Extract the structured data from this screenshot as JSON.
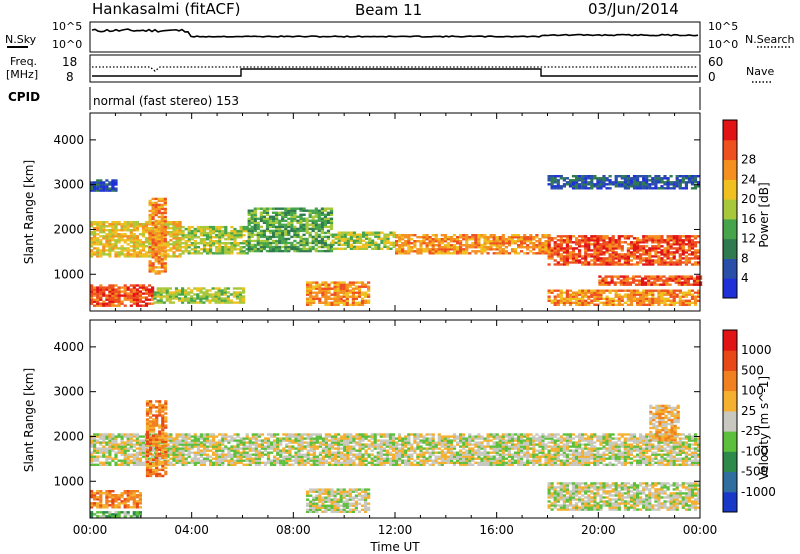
{
  "header": {
    "station": "Hankasalmi (fitACF)",
    "beam": "Beam 11",
    "date": "03/Jun/2014"
  },
  "noise_panel": {
    "left_label": "N.Sky",
    "left_ticks": [
      "10^5",
      "10^0"
    ],
    "right_label": "N.Search",
    "right_ticks": [
      "10^5",
      "10^0"
    ]
  },
  "freq_panel": {
    "left_label_line1": "Freq.",
    "left_label_line2": "[MHz]",
    "left_ticks": [
      "18",
      "8"
    ],
    "right_label": "Nave",
    "right_ticks": [
      "60",
      "0"
    ]
  },
  "cpid_panel": {
    "label": "CPID",
    "text": "normal (fast stereo) 153"
  },
  "chart_data": [
    {
      "type": "heatmap",
      "name": "power",
      "ylabel": "Slant Range [km]",
      "ylim": [
        180,
        4600
      ],
      "yticks": [
        "1000",
        "2000",
        "3000",
        "4000"
      ],
      "xlim": [
        0,
        24
      ],
      "colorbar_label": "Power [dB]",
      "colorbar_ticks": [
        "4",
        "8",
        "12",
        "16",
        "20",
        "24",
        "28"
      ],
      "colorbar_colors": [
        "#2030d8",
        "#2a4fa8",
        "#2f7a4e",
        "#46a54a",
        "#a8c83c",
        "#f0c020",
        "#f59020",
        "#ef5020",
        "#e01414"
      ],
      "bands": [
        {
          "t0": 0.0,
          "t1": 3.6,
          "r0": 1380,
          "r1": 2150,
          "level": 5
        },
        {
          "t0": 3.6,
          "t1": 6.2,
          "r0": 1450,
          "r1": 2050,
          "level": 4
        },
        {
          "t0": 6.2,
          "t1": 9.5,
          "r0": 1500,
          "r1": 2450,
          "level": 3
        },
        {
          "t0": 9.5,
          "t1": 12.0,
          "r0": 1550,
          "r1": 1950,
          "level": 4
        },
        {
          "t0": 12.0,
          "t1": 18.0,
          "r0": 1450,
          "r1": 1900,
          "level": 6
        },
        {
          "t0": 18.0,
          "t1": 24.0,
          "r0": 1200,
          "r1": 1850,
          "level": 7
        },
        {
          "t0": 0.0,
          "t1": 2.5,
          "r0": 280,
          "r1": 750,
          "level": 7
        },
        {
          "t0": 2.5,
          "t1": 6.0,
          "r0": 350,
          "r1": 700,
          "level": 4
        },
        {
          "t0": 8.5,
          "t1": 11.0,
          "r0": 300,
          "r1": 800,
          "level": 6
        },
        {
          "t0": 18.0,
          "t1": 24.0,
          "r0": 300,
          "r1": 650,
          "level": 6
        },
        {
          "t0": 20.0,
          "t1": 24.0,
          "r0": 750,
          "r1": 950,
          "level": 7
        },
        {
          "t0": 2.3,
          "t1": 3.0,
          "r0": 1000,
          "r1": 2700,
          "level": 6
        },
        {
          "t0": 0.0,
          "t1": 1.0,
          "r0": 2850,
          "r1": 3100,
          "level": 1
        },
        {
          "t0": 18.0,
          "t1": 24.0,
          "r0": 2900,
          "r1": 3200,
          "level": 1
        }
      ]
    },
    {
      "type": "heatmap",
      "name": "velocity",
      "ylabel": "Slant Range [km]",
      "ylim": [
        180,
        4600
      ],
      "yticks": [
        "1000",
        "2000",
        "3000",
        "4000"
      ],
      "xlabel": "Time UT",
      "xlim": [
        0,
        24
      ],
      "xticks": [
        "00:00",
        "04:00",
        "08:00",
        "12:00",
        "16:00",
        "20:00",
        "00:00"
      ],
      "colorbar_label": "Velocity [m s^-1]",
      "colorbar_ticks": [
        "1000",
        "500",
        "100",
        "25",
        "-25",
        "-100",
        "-500",
        "-1000"
      ],
      "colorbar_colors": [
        "#1838c8",
        "#2f6fa0",
        "#2e8a4a",
        "#5cc03c",
        "#c8c8c0",
        "#f5b030",
        "#f08020",
        "#e84818",
        "#e01414"
      ],
      "bands": [
        {
          "t0": 0.0,
          "t1": 24.0,
          "r0": 1350,
          "r1": 2050,
          "level": 4
        },
        {
          "t0": 0.0,
          "t1": 2.0,
          "r0": 400,
          "r1": 800,
          "level": 6
        },
        {
          "t0": 0.0,
          "t1": 2.0,
          "r0": 200,
          "r1": 300,
          "level": 3
        },
        {
          "t0": 2.2,
          "t1": 3.0,
          "r0": 1100,
          "r1": 2800,
          "level": 6
        },
        {
          "t0": 8.5,
          "t1": 11.0,
          "r0": 300,
          "r1": 800,
          "level": 4
        },
        {
          "t0": 18.0,
          "t1": 24.0,
          "r0": 350,
          "r1": 950,
          "level": 4
        },
        {
          "t0": 22.0,
          "t1": 23.2,
          "r0": 1900,
          "r1": 2700,
          "level": 5
        }
      ]
    }
  ]
}
